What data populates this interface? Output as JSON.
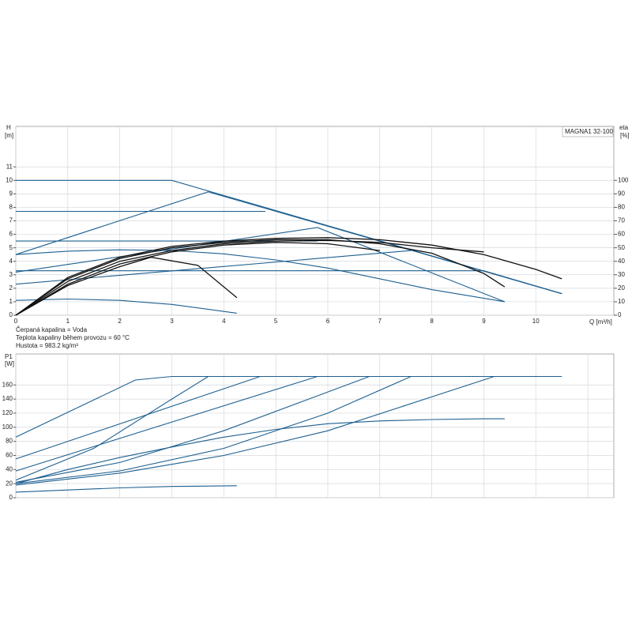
{
  "chart_data": [
    {
      "type": "line",
      "title": "MAGNA1 32-100",
      "ylabel": "H",
      "yunit": "[m]",
      "y2label": "eta",
      "y2unit": "[%]",
      "xlabel": "Q [m³/h]",
      "xlim": [
        0,
        11.5
      ],
      "xticks": [
        0,
        1,
        2,
        3,
        4,
        5,
        6,
        7,
        8,
        9,
        10
      ],
      "ylim": [
        0,
        14
      ],
      "yticks": [
        0,
        1,
        2,
        3,
        4,
        5,
        6,
        7,
        8,
        9,
        10,
        11
      ],
      "y2lim": [
        0,
        140
      ],
      "y2ticks": [
        0,
        10,
        20,
        30,
        40,
        50,
        60,
        70,
        80,
        90,
        100
      ],
      "grid": true,
      "series": [
        {
          "color": "#1d5f8f",
          "x": [
            0,
            3,
            10.5
          ],
          "values": [
            10,
            10,
            1.6
          ]
        },
        {
          "color": "#1d5f8f",
          "x": [
            0,
            4.8
          ],
          "values": [
            7.7,
            7.7
          ]
        },
        {
          "color": "#1d5f8f",
          "x": [
            0,
            3.7,
            10.5
          ],
          "values": [
            4.5,
            9.15,
            1.6
          ]
        },
        {
          "color": "#1d5f8f",
          "x": [
            0,
            5.8
          ],
          "values": [
            5.5,
            5.5
          ]
        },
        {
          "color": "#1d5f8f",
          "x": [
            0,
            5.8,
            9.4
          ],
          "values": [
            3.2,
            6.5,
            1.0
          ]
        },
        {
          "color": "#1d5f8f",
          "x": [
            0,
            1,
            2,
            3,
            4,
            5,
            6,
            7,
            8,
            9.4
          ],
          "values": [
            4.5,
            4.75,
            4.85,
            4.8,
            4.55,
            4.1,
            3.5,
            2.7,
            1.9,
            1.0
          ]
        },
        {
          "color": "#1d5f8f",
          "x": [
            0,
            9,
            10.5
          ],
          "values": [
            3.3,
            3.3,
            1.6
          ]
        },
        {
          "color": "#1d5f8f",
          "x": [
            0,
            7.6
          ],
          "values": [
            2.3,
            4.8
          ]
        },
        {
          "color": "#1d5f8f",
          "x": [
            0,
            1,
            2,
            3,
            4.25
          ],
          "values": [
            1.1,
            1.2,
            1.1,
            0.8,
            0.15
          ]
        },
        {
          "color": "#111111",
          "axis": "y2",
          "x": [
            0,
            1,
            2,
            3,
            4,
            5,
            6,
            7,
            8,
            9,
            10,
            10.5
          ],
          "values": [
            0,
            28,
            43,
            51,
            55,
            57,
            57.5,
            56,
            52,
            45,
            34,
            27
          ]
        },
        {
          "color": "#111111",
          "axis": "y2",
          "x": [
            0,
            1,
            2,
            3,
            4,
            5,
            6,
            7,
            8,
            9,
            9.4
          ],
          "values": [
            0,
            27,
            42,
            50,
            54,
            56,
            56,
            53,
            46,
            31,
            21
          ]
        },
        {
          "color": "#111111",
          "axis": "y2",
          "x": [
            0,
            1,
            2,
            3,
            4,
            5,
            6,
            7,
            8,
            9
          ],
          "values": [
            0,
            25,
            40,
            48,
            53,
            55,
            55.5,
            54,
            50,
            47
          ]
        },
        {
          "color": "#111111",
          "axis": "y2",
          "x": [
            0,
            1,
            2,
            3,
            4,
            5,
            6,
            7
          ],
          "values": [
            0,
            23,
            38,
            47,
            52,
            54,
            53,
            48
          ]
        },
        {
          "color": "#111111",
          "axis": "y2",
          "x": [
            0,
            1,
            2,
            2.6,
            3.5,
            4.25
          ],
          "values": [
            0,
            22,
            36,
            43,
            37,
            13
          ]
        }
      ]
    },
    {
      "type": "line",
      "ylabel": "P1",
      "yunit": "[W]",
      "annotations": [
        "Čerpaná kapalina = Voda",
        "Teplota kapaliny během provozu = 60 °C",
        "Hustota = 983.2 kg/m³"
      ],
      "xlim": [
        0,
        11.5
      ],
      "xgrid": [
        0,
        1,
        2,
        3,
        4,
        5,
        6,
        7,
        8,
        9,
        10,
        11
      ],
      "ylim": [
        0,
        204
      ],
      "yticks": [
        0,
        20,
        40,
        60,
        80,
        100,
        120,
        140,
        160
      ],
      "grid": true,
      "series": [
        {
          "color": "#1d5f8f",
          "x": [
            0,
            2.3,
            3,
            10.5
          ],
          "values": [
            86,
            167,
            172,
            172
          ]
        },
        {
          "color": "#1d5f8f",
          "x": [
            0,
            4.7
          ],
          "values": [
            55,
            172
          ]
        },
        {
          "color": "#1d5f8f",
          "x": [
            0,
            5.8
          ],
          "values": [
            38,
            172
          ]
        },
        {
          "color": "#1d5f8f",
          "x": [
            0,
            1.5,
            3,
            3.7
          ],
          "values": [
            25,
            70,
            140,
            172
          ]
        },
        {
          "color": "#1d5f8f",
          "x": [
            0,
            2,
            4,
            6.8
          ],
          "values": [
            22,
            50,
            95,
            172
          ]
        },
        {
          "color": "#1d5f8f",
          "x": [
            0,
            2,
            4,
            6,
            7.6
          ],
          "values": [
            20,
            38,
            70,
            120,
            172
          ]
        },
        {
          "color": "#1d5f8f",
          "x": [
            0,
            2,
            4,
            6,
            9.2
          ],
          "values": [
            18,
            35,
            60,
            95,
            172
          ]
        },
        {
          "color": "#1d5f8f",
          "x": [
            0,
            1,
            2,
            3,
            4,
            5,
            6,
            7,
            8,
            9,
            9.4
          ],
          "values": [
            20,
            40,
            57,
            72,
            86,
            97,
            105,
            109,
            111,
            112,
            112
          ]
        },
        {
          "color": "#1d5f8f",
          "x": [
            0,
            1,
            2,
            3,
            4.25
          ],
          "values": [
            8,
            11,
            14,
            16,
            17
          ]
        }
      ]
    }
  ]
}
